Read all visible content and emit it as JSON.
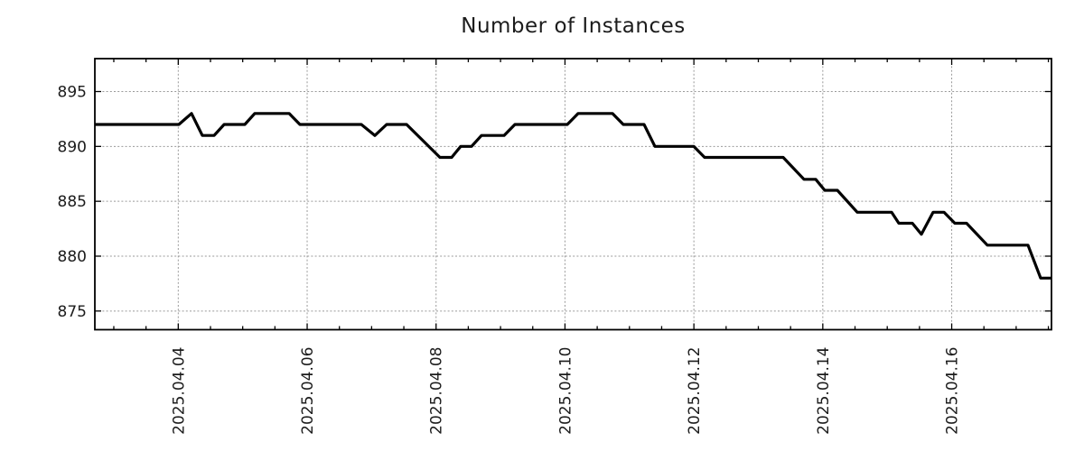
{
  "title": "Number of Instances",
  "colors": {
    "background": "#ffffff",
    "line": "#000000",
    "grid": "#9a9a9a",
    "border": "#000000",
    "text": "#1c1c1c"
  },
  "chart_data": {
    "type": "line",
    "title": "Number of Instances",
    "xlabel": "",
    "ylabel": "",
    "x_unit": "days relative to 2025.04.04 (axis tick labels below)",
    "x": [
      -1.294,
      0.01,
      0.206,
      0.374,
      0.556,
      0.711,
      1.033,
      1.187,
      1.72,
      1.888,
      2.841,
      3.051,
      3.233,
      3.542,
      4.06,
      4.242,
      4.382,
      4.55,
      4.705,
      5.055,
      5.223,
      6.036,
      6.204,
      6.737,
      6.905,
      7.227,
      7.395,
      7.998,
      8.166,
      9.385,
      9.708,
      9.89,
      10.03,
      10.226,
      10.535,
      11.067,
      11.179,
      11.39,
      11.53,
      11.712,
      11.88,
      12.048,
      12.231,
      12.553,
      13.184,
      13.38,
      13.548
    ],
    "y": [
      892,
      892,
      893,
      891,
      891,
      892,
      892,
      893,
      893,
      892,
      892,
      891,
      892,
      892,
      889,
      889,
      890,
      890,
      891,
      891,
      892,
      892,
      893,
      893,
      892,
      892,
      890,
      890,
      889,
      889,
      887,
      887,
      886,
      886,
      884,
      884,
      883,
      883,
      882,
      884,
      884,
      883,
      883,
      881,
      881,
      878,
      878
    ],
    "x_ticks": [
      {
        "day": 0,
        "label": "2025.04.04"
      },
      {
        "day": 2,
        "label": "2025.04.06"
      },
      {
        "day": 4,
        "label": "2025.04.08"
      },
      {
        "day": 6,
        "label": "2025.04.10"
      },
      {
        "day": 8,
        "label": "2025.04.12"
      },
      {
        "day": 10,
        "label": "2025.04.14"
      },
      {
        "day": 12,
        "label": "2025.04.16"
      }
    ],
    "y_ticks": [
      875,
      880,
      885,
      890,
      895
    ],
    "xlim": [
      -1.294,
      13.548
    ],
    "ylim": [
      873.3,
      898.0
    ],
    "minor_x_tick_step": 0.5,
    "grid": true,
    "legend_position": "none",
    "line_width": 3.2
  }
}
